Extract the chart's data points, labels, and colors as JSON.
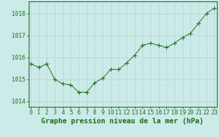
{
  "x": [
    0,
    1,
    2,
    3,
    4,
    5,
    6,
    7,
    8,
    9,
    10,
    11,
    12,
    13,
    14,
    15,
    16,
    17,
    18,
    19,
    20,
    21,
    22,
    23
  ],
  "y": [
    1015.7,
    1015.55,
    1015.7,
    1015.0,
    1014.8,
    1014.75,
    1014.42,
    1014.42,
    1014.85,
    1015.05,
    1015.45,
    1015.45,
    1015.75,
    1016.1,
    1016.55,
    1016.65,
    1016.55,
    1016.45,
    1016.65,
    1016.9,
    1017.1,
    1017.55,
    1018.0,
    1018.25
  ],
  "line_color": "#1a6e1a",
  "marker": "+",
  "marker_size": 4,
  "bg_color": "#cceae8",
  "grid_major_color": "#b0d8d4",
  "grid_minor_color": "#c4e6e2",
  "ylabel_ticks": [
    1014,
    1015,
    1016,
    1017,
    1018
  ],
  "xlabel_ticks": [
    0,
    1,
    2,
    3,
    4,
    5,
    6,
    7,
    8,
    9,
    10,
    11,
    12,
    13,
    14,
    15,
    16,
    17,
    18,
    19,
    20,
    21,
    22,
    23
  ],
  "xlim": [
    -0.3,
    23.3
  ],
  "ylim": [
    1013.75,
    1018.55
  ],
  "xlabel": "Graphe pression niveau de la mer (hPa)",
  "xlabel_fontsize": 7.5,
  "tick_fontsize": 6,
  "tick_color": "#1a6e1a",
  "label_color": "#1a6e1a",
  "border_color": "#1a6e1a"
}
